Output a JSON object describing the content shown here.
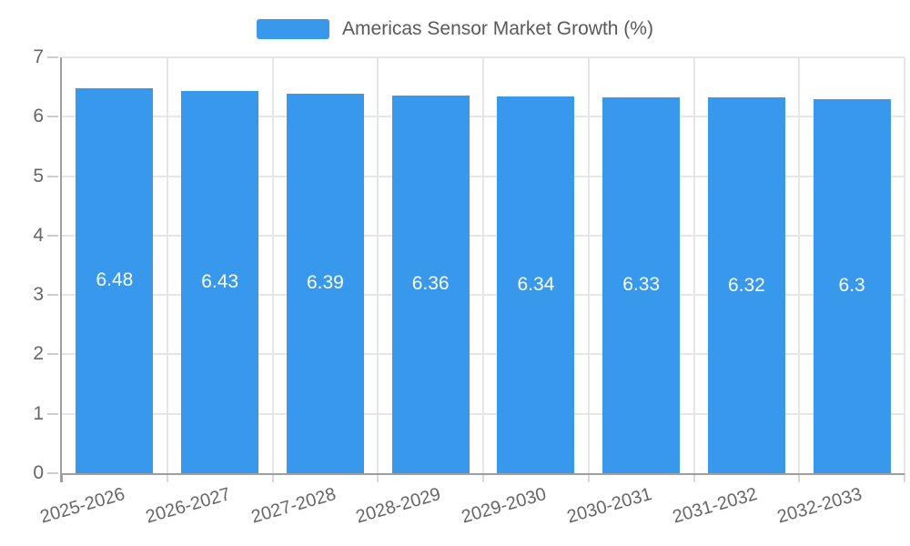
{
  "chart_data": {
    "type": "bar",
    "title": "Americas Sensor Market Growth (%)",
    "legend_entries": [
      "Americas Sensor Market Growth (%)"
    ],
    "legend_position": "top",
    "categories": [
      "2025-2026",
      "2026-2027",
      "2027-2028",
      "2028-2029",
      "2029-2030",
      "2030-2031",
      "2031-2032",
      "2032-2033"
    ],
    "values": [
      6.48,
      6.43,
      6.39,
      6.36,
      6.34,
      6.33,
      6.32,
      6.3
    ],
    "value_labels": [
      "6.48",
      "6.43",
      "6.39",
      "6.36",
      "6.34",
      "6.33",
      "6.32",
      "6.3"
    ],
    "xlabel": "",
    "ylabel": "",
    "ylim": [
      0,
      7
    ],
    "yticks": [
      0,
      1,
      2,
      3,
      4,
      5,
      6,
      7
    ],
    "grid": true,
    "bar_color": "#3899ec",
    "value_label_color": "#ffffff",
    "axis_color": "#9e9e9e",
    "grid_color": "#e6e6e6",
    "tick_label_color": "#666666",
    "legend_text_color": "#595959"
  }
}
